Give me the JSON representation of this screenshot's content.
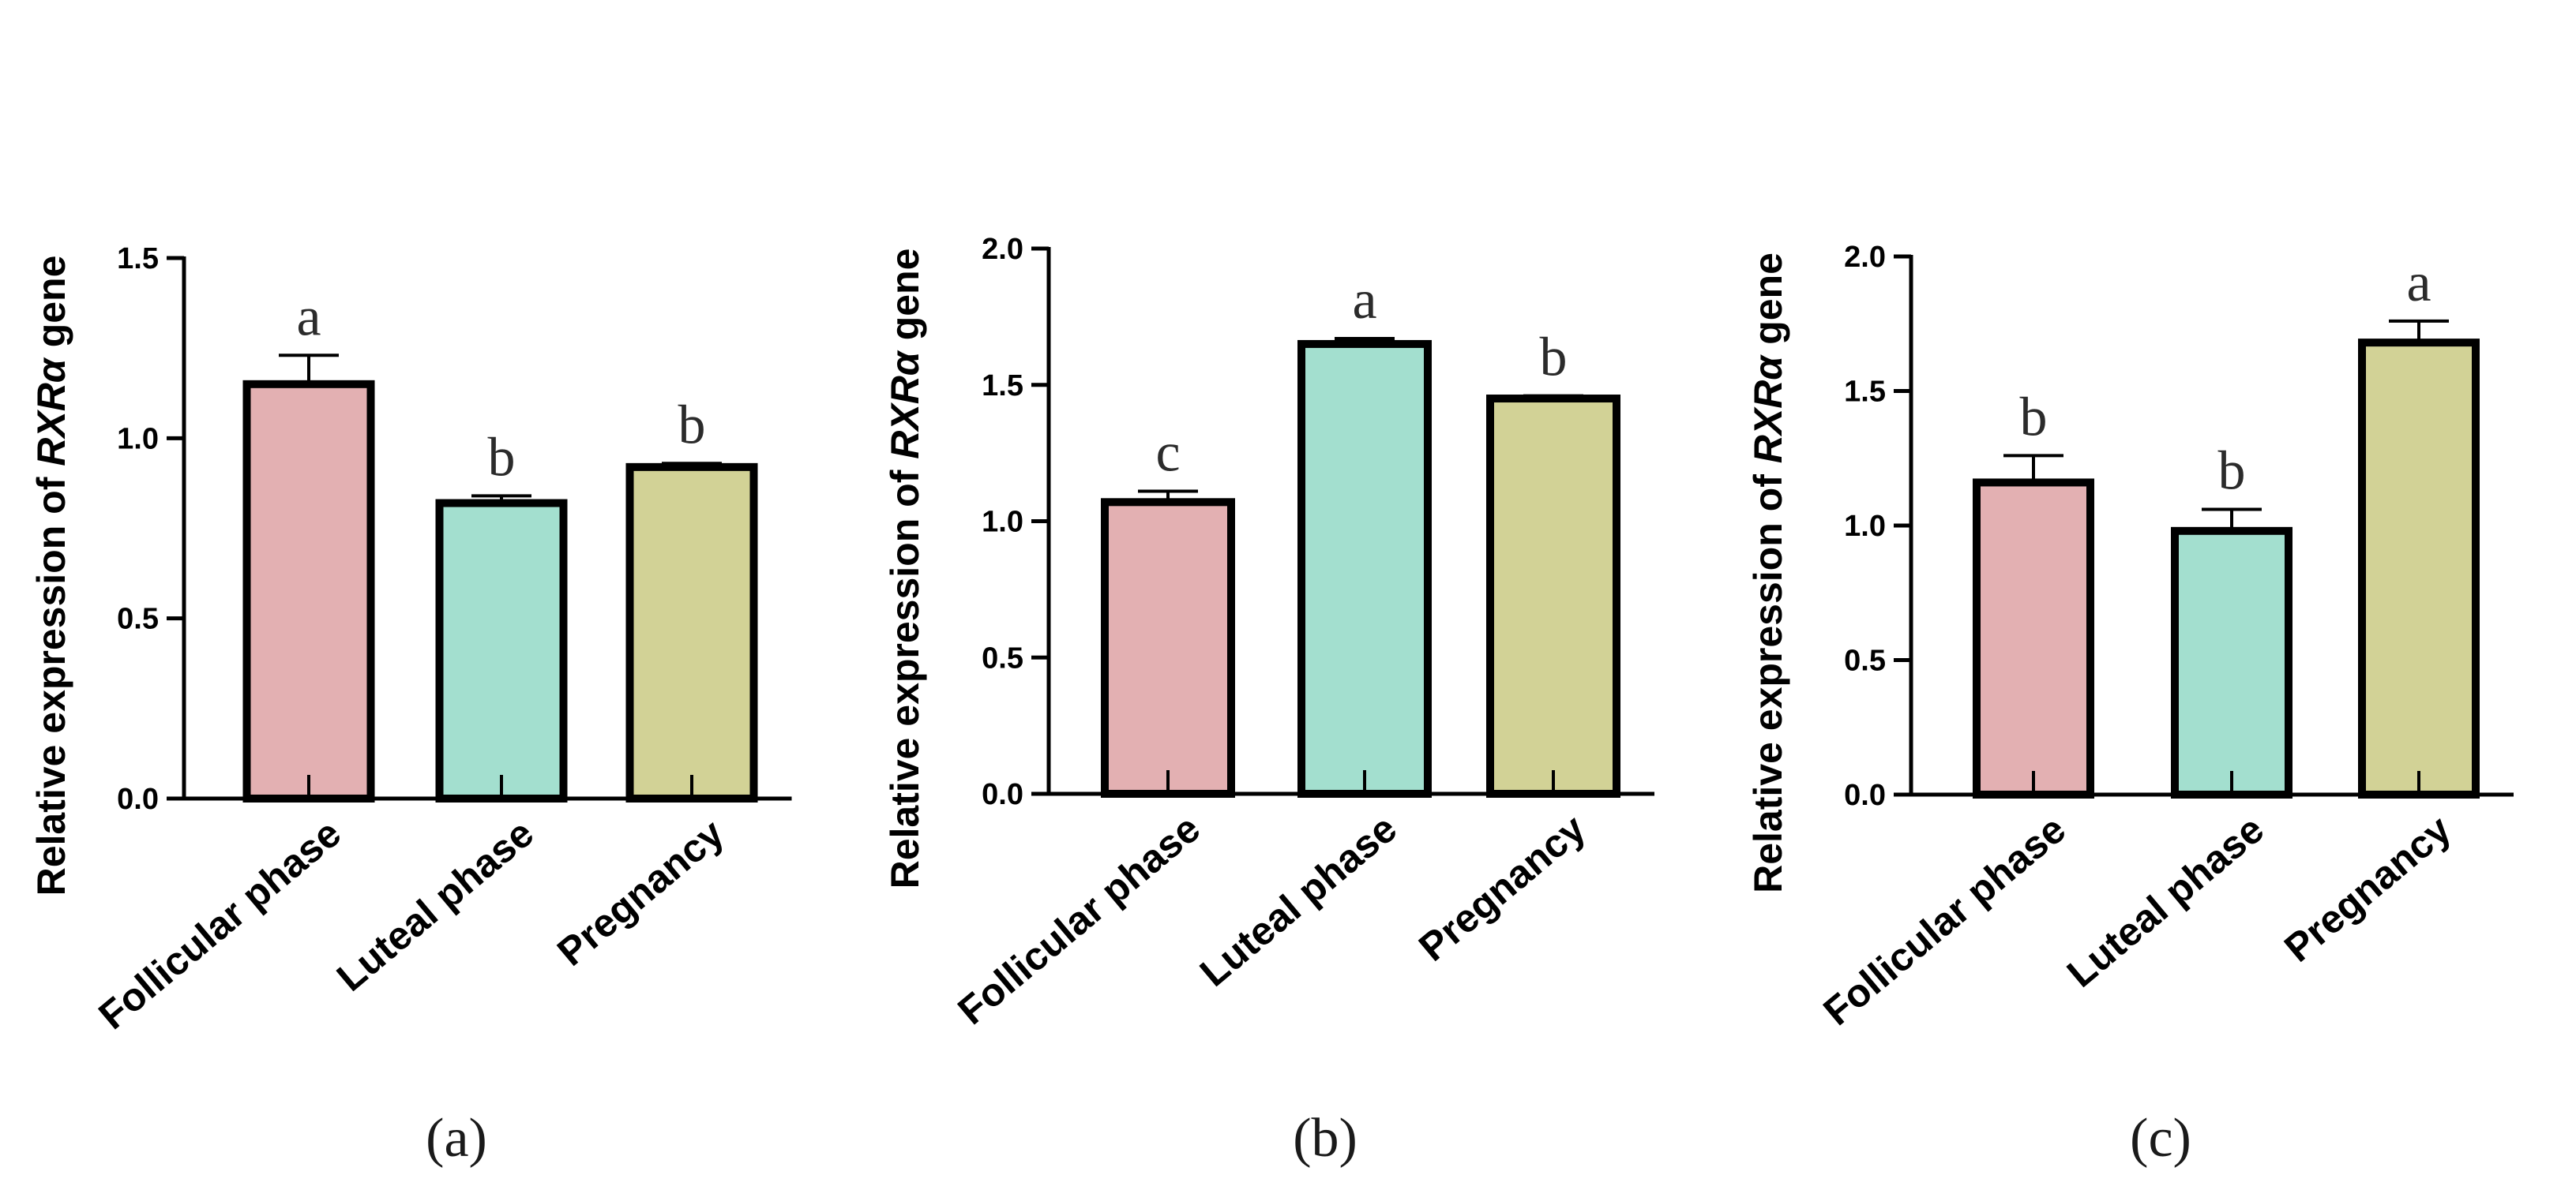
{
  "chart_data": [
    {
      "type": "bar",
      "panel_label": "(a)",
      "ylabel": {
        "prefix": "Relative expression of ",
        "gene": "RXRα",
        "suffix": " gene"
      },
      "ylim": [
        0,
        1.5
      ],
      "yticks": [
        0.0,
        0.5,
        1.0,
        1.5
      ],
      "ytick_labels": [
        "0.0",
        "0.5",
        "1.0",
        "1.5"
      ],
      "categories": [
        "Follicular phase",
        "Luteal phase",
        "Pregnancy"
      ],
      "values": [
        1.15,
        0.82,
        0.92
      ],
      "errors": [
        0.08,
        0.02,
        0.01
      ],
      "significance": [
        "a",
        "b",
        "b"
      ],
      "colors": [
        "#e3b0b2",
        "#a3dfcf",
        "#d2d296"
      ]
    },
    {
      "type": "bar",
      "panel_label": "(b)",
      "ylabel": {
        "prefix": "Relative expression of ",
        "gene": "RXRα",
        "suffix": " gene"
      },
      "ylim": [
        0,
        2.0
      ],
      "yticks": [
        0.0,
        0.5,
        1.0,
        1.5,
        2.0
      ],
      "ytick_labels": [
        "0.0",
        "0.5",
        "1.0",
        "1.5",
        "2.0"
      ],
      "categories": [
        "Follicular phase",
        "Luteal phase",
        "Pregnancy"
      ],
      "values": [
        1.07,
        1.65,
        1.45
      ],
      "errors": [
        0.04,
        0.02,
        0.01
      ],
      "significance": [
        "c",
        "a",
        "b"
      ],
      "colors": [
        "#e3b0b2",
        "#a3dfcf",
        "#d2d296"
      ]
    },
    {
      "type": "bar",
      "panel_label": "(c)",
      "ylabel": {
        "prefix": "Relative expression of ",
        "gene": "RXRα",
        "suffix": " gene"
      },
      "ylim": [
        0,
        2.0
      ],
      "yticks": [
        0.0,
        0.5,
        1.0,
        1.5,
        2.0
      ],
      "ytick_labels": [
        "0.0",
        "0.5",
        "1.0",
        "1.5",
        "2.0"
      ],
      "categories": [
        "Follicular phase",
        "Luteal phase",
        "Pregnancy"
      ],
      "values": [
        1.16,
        0.98,
        1.68
      ],
      "errors": [
        0.1,
        0.08,
        0.08
      ],
      "significance": [
        "b",
        "b",
        "a"
      ],
      "colors": [
        "#e3b0b2",
        "#a3dfcf",
        "#d2d296"
      ]
    }
  ]
}
